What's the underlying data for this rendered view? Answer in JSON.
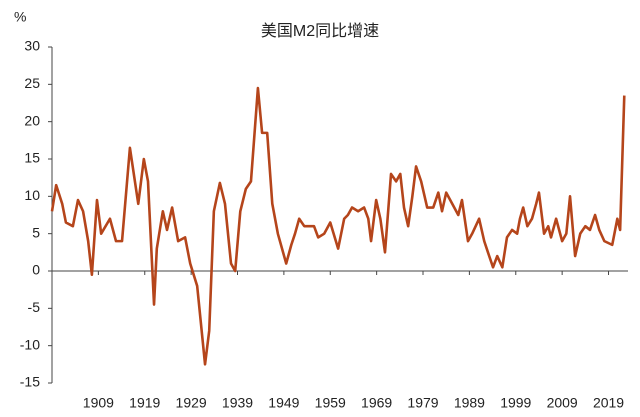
{
  "chart_data": {
    "type": "line",
    "title": "美国M2同比增速",
    "y_label": "%",
    "x": [
      1899.0,
      1899.9,
      1901.2,
      1902.0,
      1903.5,
      1904.6,
      1905.7,
      1906.8,
      1907.6,
      1908.7,
      1909.6,
      1911.5,
      1912.8,
      1914.1,
      1915.8,
      1917.6,
      1918.8,
      1919.7,
      1921.0,
      1921.6,
      1922.9,
      1923.8,
      1924.9,
      1926.2,
      1927.7,
      1928.8,
      1930.3,
      1932.0,
      1932.9,
      1933.9,
      1935.2,
      1936.3,
      1937.6,
      1938.5,
      1939.6,
      1940.8,
      1941.9,
      1943.4,
      1944.3,
      1945.4,
      1946.5,
      1947.7,
      1949.5,
      1950.6,
      1951.4,
      1952.3,
      1953.4,
      1955.5,
      1956.4,
      1957.7,
      1959.0,
      1960.7,
      1962.0,
      1962.8,
      1963.7,
      1965.0,
      1966.3,
      1967.2,
      1967.8,
      1968.9,
      1969.8,
      1970.8,
      1972.1,
      1973.2,
      1974.1,
      1974.9,
      1975.8,
      1976.7,
      1977.5,
      1978.6,
      1979.9,
      1981.2,
      1982.3,
      1983.1,
      1984.0,
      1985.3,
      1986.6,
      1987.4,
      1988.7,
      1989.6,
      1991.1,
      1992.2,
      1993.0,
      1994.1,
      1995.0,
      1996.1,
      1997.1,
      1998.2,
      1999.3,
      1999.9,
      2000.6,
      2001.5,
      2002.5,
      2003.4,
      2004.0,
      2005.1,
      2006.0,
      2006.6,
      2007.7,
      2009.0,
      2009.9,
      2010.7,
      2011.8,
      2012.9,
      2014.0,
      2015.0,
      2016.1,
      2017.0,
      2018.1,
      2019.8,
      2020.9,
      2021.5,
      2022.4
    ],
    "series": [
      {
        "name": "美国M2同比增速",
        "color": "#b5451b",
        "values": [
          8,
          11.5,
          9,
          6.5,
          6,
          9.5,
          8,
          4,
          -0.5,
          9.5,
          5,
          7,
          4,
          4,
          16.5,
          9,
          15,
          12,
          -4.5,
          3,
          8,
          5.5,
          8.5,
          4,
          4.5,
          1,
          -2,
          -12.5,
          -8,
          8,
          11.8,
          9,
          1,
          0,
          8,
          11,
          12,
          24.5,
          18.5,
          18.5,
          9,
          5,
          1,
          3.5,
          5,
          7,
          6,
          6,
          4.5,
          5,
          6.5,
          3,
          7,
          7.5,
          8.5,
          8,
          8.5,
          7,
          4,
          9.5,
          7,
          2.5,
          13,
          12,
          13,
          8.5,
          6,
          10,
          14,
          12,
          8.5,
          8.5,
          10.5,
          8,
          10.5,
          9,
          7.5,
          9.5,
          4,
          5,
          7,
          4,
          2.5,
          0.5,
          2,
          0.5,
          4.5,
          5.5,
          5,
          7,
          8.5,
          6,
          7,
          9,
          10.5,
          5,
          6,
          4.5,
          7,
          4,
          5,
          10,
          2,
          5,
          6,
          5.5,
          7.5,
          5.5,
          4,
          3.5,
          7,
          5.5,
          23.5
        ]
      }
    ],
    "xlim": [
      1899,
      2023.2
    ],
    "xticks": [
      1909,
      1919,
      1929,
      1939,
      1949,
      1959,
      1969,
      1979,
      1989,
      1999,
      2009,
      2019
    ],
    "ylim": [
      -15,
      30
    ],
    "yticks": [
      -15,
      -10,
      -5,
      0,
      5,
      10,
      15,
      20,
      25,
      30
    ]
  }
}
